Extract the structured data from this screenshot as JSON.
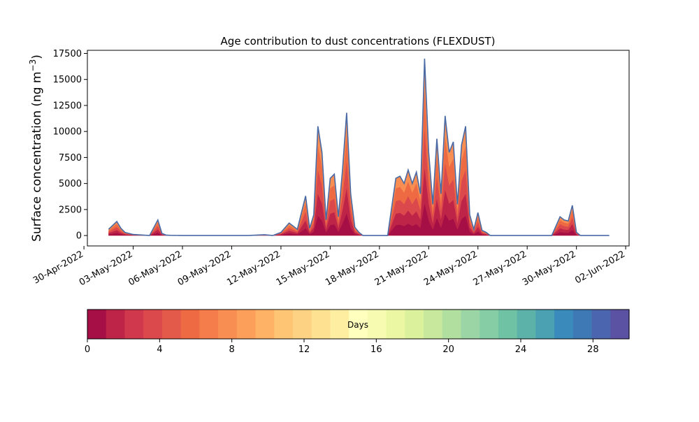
{
  "chart_data": {
    "type": "area",
    "title": "Age contribution to dust concentrations (FLEXDUST)",
    "ylabel": "Surface concentration (ng m",
    "ylabel_sup": "−3",
    "ylabel_close": ")",
    "ylim": [
      -1000,
      17800
    ],
    "xlim": [
      "2022-04-30T05:00",
      "2022-06-02T05:00"
    ],
    "x_ticks": [
      "30-Apr-2022",
      "03-May-2022",
      "06-May-2022",
      "09-May-2022",
      "12-May-2022",
      "15-May-2022",
      "18-May-2022",
      "21-May-2022",
      "24-May-2022",
      "27-May-2022",
      "30-May-2022",
      "02-Jun-2022"
    ],
    "x_tick_dates": [
      "2022-04-30",
      "2022-05-03",
      "2022-05-06",
      "2022-05-09",
      "2022-05-12",
      "2022-05-15",
      "2022-05-18",
      "2022-05-21",
      "2022-05-24",
      "2022-05-27",
      "2022-05-30",
      "2022-06-02"
    ],
    "y_ticks": [
      "0",
      "2500",
      "5000",
      "7500",
      "10000",
      "12500",
      "15000",
      "17500"
    ],
    "y_tick_values": [
      0,
      2500,
      5000,
      7500,
      10000,
      12500,
      15000,
      17500
    ],
    "total": {
      "x": [
        "2022-05-01T12:00",
        "2022-05-02T00:00",
        "2022-05-02T06:00",
        "2022-05-02T12:00",
        "2022-05-03T00:00",
        "2022-05-04T00:00",
        "2022-05-04T12:00",
        "2022-05-04T18:00",
        "2022-05-05T00:00",
        "2022-05-05T06:00",
        "2022-05-06T00:00",
        "2022-05-10T00:00",
        "2022-05-11T00:00",
        "2022-05-11T12:00",
        "2022-05-12T00:00",
        "2022-05-12T12:00",
        "2022-05-13T00:00",
        "2022-05-13T12:00",
        "2022-05-13T18:00",
        "2022-05-14T00:00",
        "2022-05-14T06:00",
        "2022-05-14T12:00",
        "2022-05-14T18:00",
        "2022-05-15T00:00",
        "2022-05-15T06:00",
        "2022-05-15T12:00",
        "2022-05-15T18:00",
        "2022-05-16T00:00",
        "2022-05-16T06:00",
        "2022-05-16T12:00",
        "2022-05-16T18:00",
        "2022-05-17T00:00",
        "2022-05-17T06:00",
        "2022-05-17T12:00",
        "2022-05-17T18:00",
        "2022-05-18T00:00",
        "2022-05-18T06:00",
        "2022-05-18T12:00",
        "2022-05-19T00:00",
        "2022-05-19T06:00",
        "2022-05-19T12:00",
        "2022-05-19T18:00",
        "2022-05-20T00:00",
        "2022-05-20T06:00",
        "2022-05-20T12:00",
        "2022-05-20T18:00",
        "2022-05-21T00:00",
        "2022-05-21T06:00",
        "2022-05-21T12:00",
        "2022-05-21T18:00",
        "2022-05-22T00:00",
        "2022-05-22T06:00",
        "2022-05-22T12:00",
        "2022-05-22T18:00",
        "2022-05-23T00:00",
        "2022-05-23T06:00",
        "2022-05-23T12:00",
        "2022-05-23T18:00",
        "2022-05-24T00:00",
        "2022-05-24T06:00",
        "2022-05-24T12:00",
        "2022-05-24T18:00",
        "2022-05-25T00:00",
        "2022-05-25T06:00",
        "2022-05-25T12:00",
        "2022-05-26T00:00",
        "2022-05-27T00:00",
        "2022-05-28T00:00",
        "2022-05-28T12:00",
        "2022-05-29T00:00",
        "2022-05-29T06:00",
        "2022-05-29T12:00",
        "2022-05-29T18:00",
        "2022-05-30T00:00",
        "2022-05-30T06:00",
        "2022-05-30T12:00",
        "2022-05-31T00:00",
        "2022-06-01T00:00"
      ],
      "y": [
        600,
        1350,
        700,
        300,
        100,
        0,
        1500,
        200,
        50,
        20,
        0,
        0,
        80,
        0,
        300,
        1200,
        600,
        3800,
        700,
        2000,
        10500,
        8000,
        1500,
        5500,
        5900,
        1800,
        6300,
        11800,
        4000,
        800,
        300,
        0,
        0,
        0,
        0,
        0,
        0,
        0,
        5500,
        5700,
        5000,
        6300,
        5000,
        6100,
        4000,
        17000,
        8000,
        3000,
        9300,
        4000,
        11500,
        8000,
        9000,
        3000,
        8700,
        10500,
        2000,
        600,
        2200,
        500,
        300,
        0,
        0,
        0,
        0,
        0,
        0,
        0,
        0,
        1800,
        1500,
        1400,
        2900,
        300,
        0,
        0,
        0,
        0
      ]
    },
    "colorbar": {
      "label": "Days",
      "min": 0,
      "max": 30,
      "levels": 30,
      "ticks": [
        "0",
        "4",
        "8",
        "12",
        "16",
        "20",
        "24",
        "28"
      ],
      "tick_values": [
        0,
        4,
        8,
        12,
        16,
        20,
        24,
        28
      ],
      "colormap": "Spectral",
      "colors": [
        "#a50f45",
        "#bd2447",
        "#d0384d",
        "#dc494c",
        "#e45a4a",
        "#ed6a43",
        "#f47d4b",
        "#f88e52",
        "#fb9f5a",
        "#fdb265",
        "#fdc574",
        "#fed283",
        "#fee191",
        "#feeea1",
        "#ffffbe",
        "#f6fbb1",
        "#ecf7a4",
        "#dbf19b",
        "#c8e89e",
        "#b1df9f",
        "#9bd5a5",
        "#86cca5",
        "#70c2a5",
        "#5cb1a9",
        "#4ba0b1",
        "#3a8bbc",
        "#3e79b6",
        "#4b65ae",
        "#5c52a3"
      ]
    }
  }
}
